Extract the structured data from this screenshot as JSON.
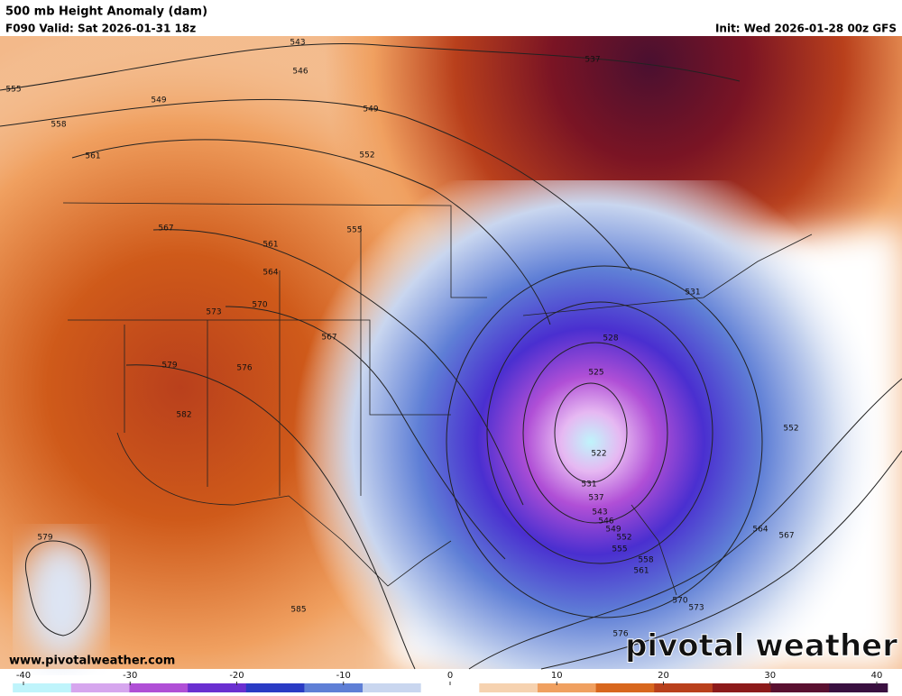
{
  "header": {
    "title": "500 mb Height Anomaly (dam)",
    "valid": "F090 Valid: Sat 2026-01-31 18z",
    "init": "Init: Wed 2026-01-28 00z GFS"
  },
  "map": {
    "contour_labels": [
      543,
      546,
      537,
      555,
      549,
      549,
      558,
      552,
      561,
      567,
      555,
      561,
      564,
      531,
      570,
      573,
      528,
      567,
      579,
      576,
      525,
      582,
      552,
      522,
      531,
      537,
      543,
      546,
      549,
      552,
      555,
      558,
      561,
      564,
      567,
      579,
      570,
      573,
      585,
      576
    ]
  },
  "colorbar": {
    "lim": [
      -41,
      41
    ],
    "ticks": [
      -40,
      -30,
      -20,
      -10,
      0,
      10,
      20,
      30,
      40
    ],
    "colors": [
      "#bff4fb",
      "#d6a6ee",
      "#b04fd6",
      "#6a2fd0",
      "#2a3bc4",
      "#5f7fd6",
      "#c9d6ef",
      "#ffffff",
      "#f6d2b0",
      "#f0a060",
      "#d8671e",
      "#b9401c",
      "#8c1a1a",
      "#5a1030",
      "#3a1040"
    ]
  },
  "footer": {
    "website": "www.pivotalweather.com",
    "logo": "pivotal weather"
  }
}
